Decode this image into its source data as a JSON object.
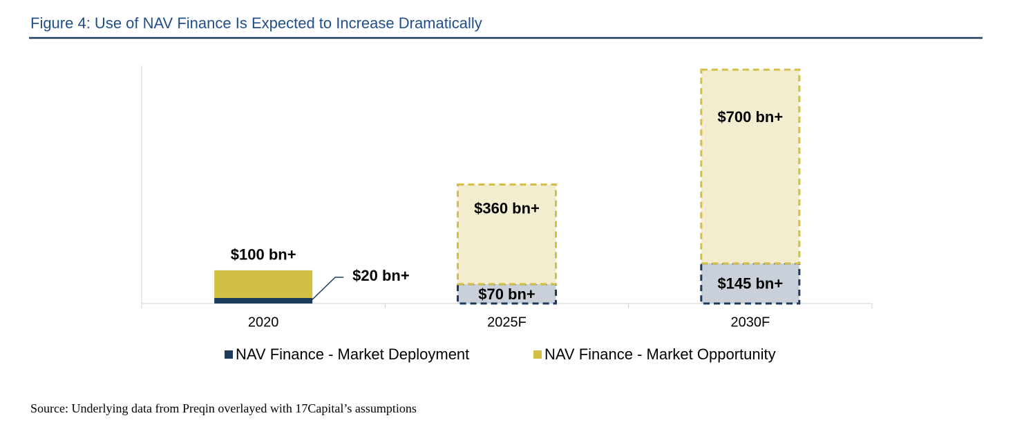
{
  "chart_data": {
    "type": "stacked_bar",
    "title": "Figure 4: Use of NAV Finance Is Expected to Increase Dramatically",
    "categories": [
      "2020",
      "2025F",
      "2030F"
    ],
    "dashed": [
      false,
      true,
      true
    ],
    "series": [
      {
        "name": "NAV Finance - Market Deployment",
        "color": "#1b3a5c",
        "forecast_color": "#c9d0d9",
        "values": [
          20,
          70,
          145
        ],
        "value_labels": [
          "$20 bn+",
          "$70 bn+",
          "$145 bn+"
        ]
      },
      {
        "name": "NAV Finance - Market Opportunity",
        "color": "#d4bf45",
        "forecast_color": "#f3edd0",
        "values": [
          100,
          360,
          700
        ],
        "value_labels": [
          "$100 bn+",
          "$360 bn+",
          "$700 bn+"
        ]
      }
    ],
    "ylim": [
      0,
      860
    ],
    "source": "Source: Underlying data from Preqin overlayed with 17Capital’s assumptions"
  }
}
